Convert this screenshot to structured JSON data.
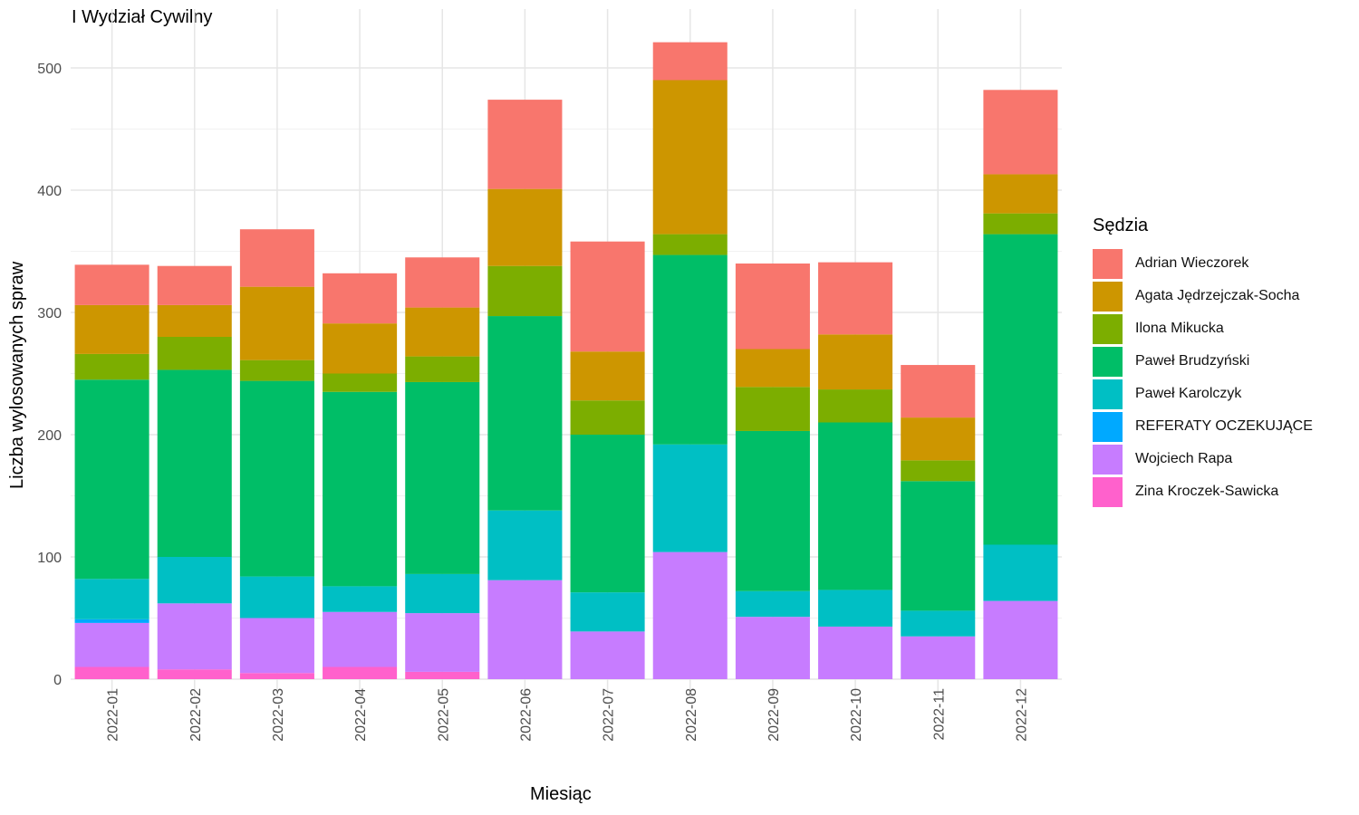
{
  "chart_data": {
    "type": "bar",
    "stacked": true,
    "title": "I Wydział Cywilny",
    "xlabel": "Miesiąc",
    "ylabel": "Liczba wylosowanych spraw",
    "ylim": [
      0,
      520
    ],
    "yticks": [
      0,
      100,
      200,
      300,
      400,
      500
    ],
    "grid": true,
    "legend_position": "right",
    "legend_title": "Sędzia",
    "categories": [
      "2022-01",
      "2022-02",
      "2022-03",
      "2022-04",
      "2022-05",
      "2022-06",
      "2022-07",
      "2022-08",
      "2022-09",
      "2022-10",
      "2022-11",
      "2022-12"
    ],
    "series": [
      {
        "name": "Adrian Wieczorek",
        "color": "#F8766D",
        "values": [
          33,
          32,
          47,
          41,
          41,
          73,
          90,
          31,
          70,
          59,
          43,
          69
        ]
      },
      {
        "name": "Agata Jędrzejczak-Socha",
        "color": "#CD9600",
        "values": [
          40,
          26,
          60,
          41,
          40,
          63,
          40,
          126,
          31,
          45,
          35,
          32
        ]
      },
      {
        "name": "Ilona Mikucka",
        "color": "#7CAE00",
        "values": [
          21,
          27,
          17,
          15,
          21,
          41,
          28,
          17,
          36,
          27,
          17,
          17
        ]
      },
      {
        "name": "Paweł Brudzyński",
        "color": "#00BE67",
        "values": [
          163,
          153,
          160,
          159,
          157,
          159,
          129,
          155,
          131,
          137,
          106,
          254
        ]
      },
      {
        "name": "Paweł Karolczyk",
        "color": "#00BFC4",
        "values": [
          33,
          38,
          34,
          21,
          32,
          57,
          32,
          88,
          21,
          30,
          21,
          46
        ]
      },
      {
        "name": "REFERATY OCZEKUJĄCE",
        "color": "#00A9FF",
        "values": [
          3,
          0,
          0,
          0,
          0,
          0,
          0,
          0,
          0,
          0,
          0,
          0
        ]
      },
      {
        "name": "Wojciech Rapa",
        "color": "#C77CFF",
        "values": [
          36,
          54,
          45,
          45,
          48,
          81,
          39,
          104,
          51,
          43,
          35,
          64
        ]
      },
      {
        "name": "Zina Kroczek-Sawicka",
        "color": "#FF61CC",
        "values": [
          10,
          8,
          5,
          10,
          6,
          0,
          0,
          0,
          0,
          0,
          0,
          0
        ]
      }
    ]
  }
}
